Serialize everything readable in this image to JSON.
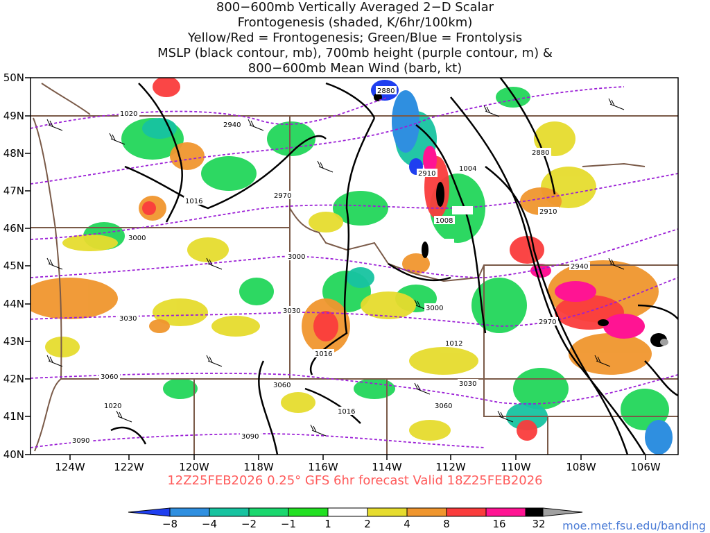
{
  "title_lines": [
    "800−600mb Vertically Averaged 2−D Scalar",
    "Frontogenesis (shaded, K/6hr/100km)",
    "Yellow/Red = Frontogenesis;  Green/Blue = Frontolysis",
    "MSLP (black contour, mb), 700mb height (purple contour, m) &",
    "800−600mb Mean Wind (barb, kt)"
  ],
  "lat_labels": [
    "50N",
    "49N",
    "48N",
    "47N",
    "46N",
    "45N",
    "44N",
    "43N",
    "42N",
    "41N",
    "40N"
  ],
  "lon_labels": [
    "124W",
    "122W",
    "120W",
    "118W",
    "116W",
    "114W",
    "112W",
    "110W",
    "108W",
    "106W"
  ],
  "valid_text": "12Z25FEB2026 0.25° GFS 6hr forecast Valid 18Z25FEB2026",
  "credit": "moe.met.fsu.edu/banding",
  "colorbar": {
    "labels": [
      "−8",
      "−4",
      "−2",
      "−1",
      "1",
      "2",
      "4",
      "8",
      "16",
      "32"
    ],
    "colors": [
      "#1f3ff0",
      "#2f8fe0",
      "#17c3a0",
      "#1ad76e",
      "#22e022",
      "#ffffff",
      "#e6dc2e",
      "#f0962e",
      "#fa3c3c",
      "#ff1493",
      "#000000",
      "#a0a0a0"
    ]
  },
  "contour_labels": {
    "height": [
      "2880",
      "2940",
      "2880",
      "2910",
      "2970",
      "2910",
      "3000",
      "3000",
      "2940",
      "3030",
      "3000",
      "2970",
      "3030",
      "3060",
      "3060",
      "3030",
      "3060",
      "3090",
      "3090"
    ],
    "mslp": [
      "1020",
      "1016",
      "1004",
      "1008",
      "1012",
      "1016",
      "1016",
      "1020"
    ]
  }
}
